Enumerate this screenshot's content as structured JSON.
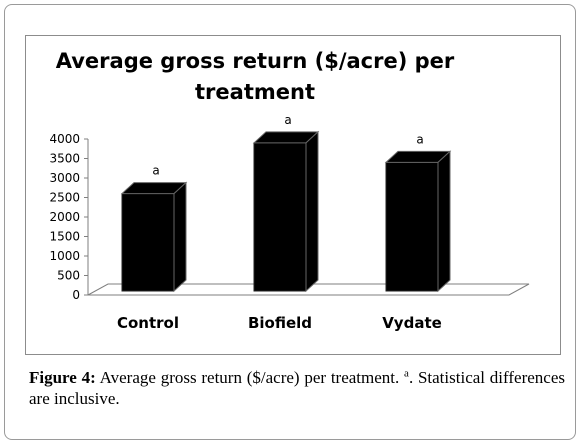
{
  "chart_data": {
    "type": "bar",
    "title": "Average gross return ($/acre) per treatment",
    "categories": [
      "Control",
      "Biofield",
      "Vydate"
    ],
    "values": [
      2600,
      3900,
      3400
    ],
    "annotations": [
      "a",
      "a",
      "a"
    ],
    "yticks": [
      "0",
      "500",
      "1000",
      "1500",
      "2000",
      "2500",
      "3000",
      "3500",
      "4000"
    ],
    "ylim": [
      0,
      4000
    ],
    "xlabel": "",
    "ylabel": "",
    "grid": false,
    "bar_color": "#000000",
    "style": "3d-column"
  },
  "caption": {
    "label": "Figure 4:",
    "text_before": " Average gross return ($/acre) per treatment. ",
    "superscript": "a",
    "text_after": ". Statistical differences are inclusive."
  }
}
